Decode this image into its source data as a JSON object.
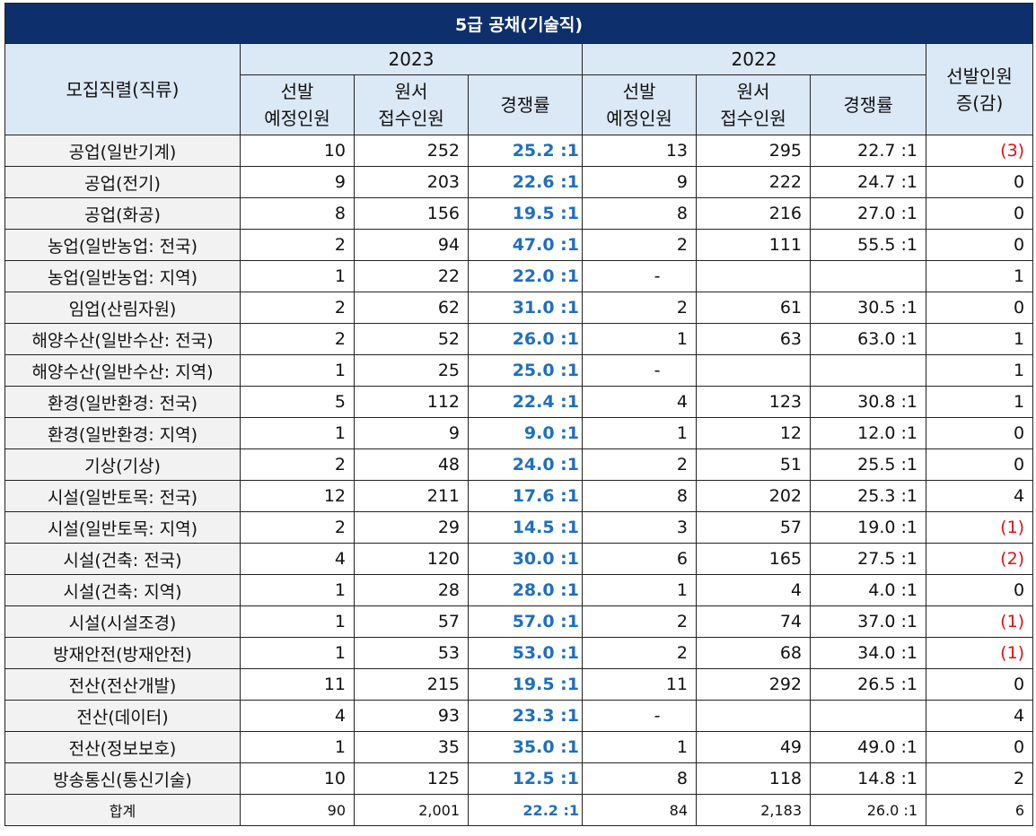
{
  "title": "5급 공채(기술직)",
  "header": {
    "category": "모집직렬(직류)",
    "year_2023": "2023",
    "year_2022": "2022",
    "planned": "선발\n예정인원",
    "applicants": "원서\n접수인원",
    "ratio": "경쟁률",
    "change": "선발인원\n증(감)"
  },
  "colors": {
    "title_bg": "#0d2f6b",
    "header_bg": "#dbe8f6",
    "ratio_2023": "#1f6fbf",
    "negative": "#e01010"
  },
  "rows": [
    {
      "name": "공업(일반기계)",
      "p23": "10",
      "a23": "252",
      "r23": "25.2 :1",
      "p22": "13",
      "a22": "295",
      "r22": "22.7 :1",
      "diff": "(3)",
      "neg": true
    },
    {
      "name": "공업(전기)",
      "p23": "9",
      "a23": "203",
      "r23": "22.6 :1",
      "p22": "9",
      "a22": "222",
      "r22": "24.7 :1",
      "diff": "0",
      "neg": false
    },
    {
      "name": "공업(화공)",
      "p23": "8",
      "a23": "156",
      "r23": "19.5 :1",
      "p22": "8",
      "a22": "216",
      "r22": "27.0 :1",
      "diff": "0",
      "neg": false
    },
    {
      "name": "농업(일반농업: 전국)",
      "p23": "2",
      "a23": "94",
      "r23": "47.0 :1",
      "p22": "2",
      "a22": "111",
      "r22": "55.5 :1",
      "diff": "0",
      "neg": false
    },
    {
      "name": "농업(일반농업: 지역)",
      "p23": "1",
      "a23": "22",
      "r23": "22.0 :1",
      "p22": "-",
      "a22": "",
      "r22": "",
      "diff": "1",
      "neg": false
    },
    {
      "name": "임업(산림자원)",
      "p23": "2",
      "a23": "62",
      "r23": "31.0 :1",
      "p22": "2",
      "a22": "61",
      "r22": "30.5 :1",
      "diff": "0",
      "neg": false
    },
    {
      "name": "해양수산(일반수산: 전국)",
      "p23": "2",
      "a23": "52",
      "r23": "26.0 :1",
      "p22": "1",
      "a22": "63",
      "r22": "63.0 :1",
      "diff": "1",
      "neg": false
    },
    {
      "name": "해양수산(일반수산: 지역)",
      "p23": "1",
      "a23": "25",
      "r23": "25.0 :1",
      "p22": "-",
      "a22": "",
      "r22": "",
      "diff": "1",
      "neg": false
    },
    {
      "name": "환경(일반환경: 전국)",
      "p23": "5",
      "a23": "112",
      "r23": "22.4 :1",
      "p22": "4",
      "a22": "123",
      "r22": "30.8 :1",
      "diff": "1",
      "neg": false
    },
    {
      "name": "환경(일반환경: 지역)",
      "p23": "1",
      "a23": "9",
      "r23": "9.0 :1",
      "p22": "1",
      "a22": "12",
      "r22": "12.0 :1",
      "diff": "0",
      "neg": false
    },
    {
      "name": "기상(기상)",
      "p23": "2",
      "a23": "48",
      "r23": "24.0 :1",
      "p22": "2",
      "a22": "51",
      "r22": "25.5 :1",
      "diff": "0",
      "neg": false
    },
    {
      "name": "시설(일반토목: 전국)",
      "p23": "12",
      "a23": "211",
      "r23": "17.6 :1",
      "p22": "8",
      "a22": "202",
      "r22": "25.3 :1",
      "diff": "4",
      "neg": false
    },
    {
      "name": "시설(일반토목: 지역)",
      "p23": "2",
      "a23": "29",
      "r23": "14.5 :1",
      "p22": "3",
      "a22": "57",
      "r22": "19.0 :1",
      "diff": "(1)",
      "neg": true
    },
    {
      "name": "시설(건축: 전국)",
      "p23": "4",
      "a23": "120",
      "r23": "30.0 :1",
      "p22": "6",
      "a22": "165",
      "r22": "27.5 :1",
      "diff": "(2)",
      "neg": true
    },
    {
      "name": "시설(건축: 지역)",
      "p23": "1",
      "a23": "28",
      "r23": "28.0 :1",
      "p22": "1",
      "a22": "4",
      "r22": "4.0 :1",
      "diff": "0",
      "neg": false
    },
    {
      "name": "시설(시설조경)",
      "p23": "1",
      "a23": "57",
      "r23": "57.0 :1",
      "p22": "2",
      "a22": "74",
      "r22": "37.0 :1",
      "diff": "(1)",
      "neg": true
    },
    {
      "name": "방재안전(방재안전)",
      "p23": "1",
      "a23": "53",
      "r23": "53.0 :1",
      "p22": "2",
      "a22": "68",
      "r22": "34.0 :1",
      "diff": "(1)",
      "neg": true
    },
    {
      "name": "전산(전산개발)",
      "p23": "11",
      "a23": "215",
      "r23": "19.5 :1",
      "p22": "11",
      "a22": "292",
      "r22": "26.5 :1",
      "diff": "0",
      "neg": false
    },
    {
      "name": "전산(데이터)",
      "p23": "4",
      "a23": "93",
      "r23": "23.3 :1",
      "p22": "-",
      "a22": "",
      "r22": "",
      "diff": "4",
      "neg": false
    },
    {
      "name": "전산(정보보호)",
      "p23": "1",
      "a23": "35",
      "r23": "35.0 :1",
      "p22": "1",
      "a22": "49",
      "r22": "49.0 :1",
      "diff": "0",
      "neg": false
    },
    {
      "name": "방송통신(통신기술)",
      "p23": "10",
      "a23": "125",
      "r23": "12.5 :1",
      "p22": "8",
      "a22": "118",
      "r22": "14.8 :1",
      "diff": "2",
      "neg": false
    }
  ],
  "total": {
    "name": "합계",
    "p23": "90",
    "a23": "2,001",
    "r23": "22.2 :1",
    "p22": "84",
    "a22": "2,183",
    "r22": "26.0 :1",
    "diff": "6"
  }
}
